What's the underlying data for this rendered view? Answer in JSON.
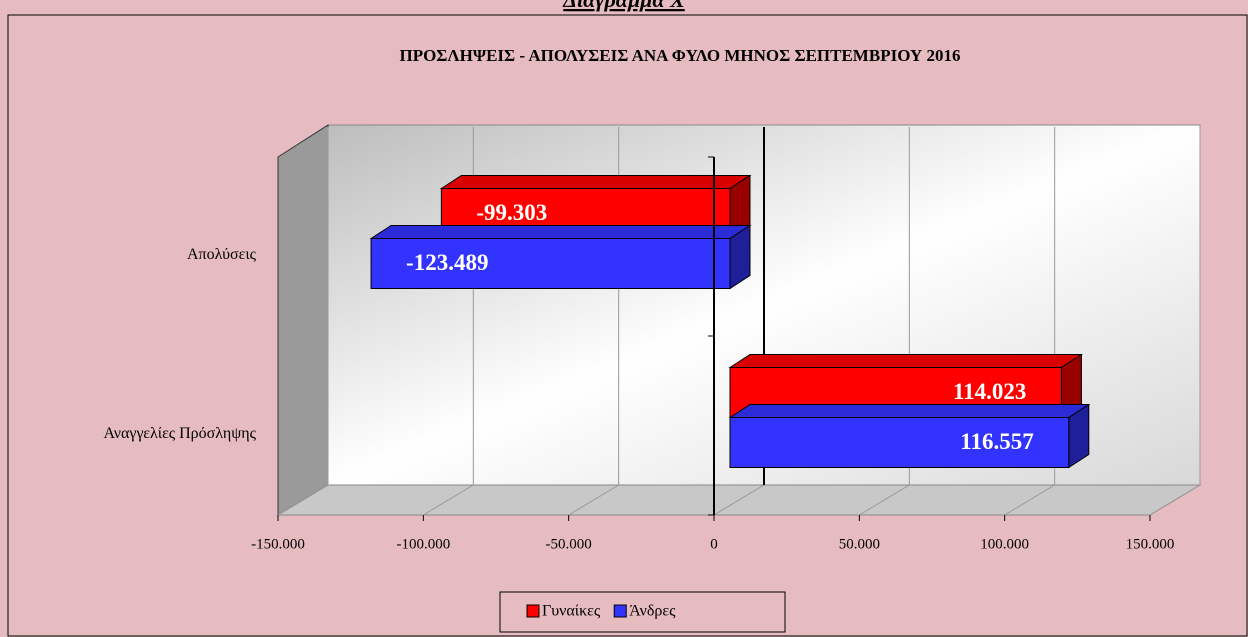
{
  "heading": "Διάγραμμα Χ",
  "chart_data": {
    "type": "bar3d-horizontal",
    "title": "ΠΡΟΣΛΗΨΕΙΣ - ΑΠΟΛΥΣΕΙΣ ΑΝΑ ΦΥΛΟ ΜΗΝΟΣ ΣΕΠΤΕΜΒΡΙΟΥ 2016",
    "categories": [
      "Απολύσεις",
      "Αναγγελίες Πρόσληψης"
    ],
    "series": [
      {
        "name": "Γυναίκες",
        "color": "#ff0000",
        "values": [
          -99303,
          114023
        ],
        "value_labels": [
          "-99.303",
          "114.023"
        ]
      },
      {
        "name": "Άνδρες",
        "color": "#3333ff",
        "values": [
          -123489,
          116557
        ],
        "value_labels": [
          "-123.489",
          "116.557"
        ]
      }
    ],
    "xlim": [
      -150000,
      150000
    ],
    "xticks": [
      {
        "value": -150000,
        "label": "-150.000"
      },
      {
        "value": -100000,
        "label": "-100.000"
      },
      {
        "value": -50000,
        "label": "-50.000"
      },
      0,
      {
        "value": 50000,
        "label": "50.000"
      },
      {
        "value": 100000,
        "label": "100.000"
      },
      {
        "value": 150000,
        "label": "150.000"
      }
    ],
    "grid": true,
    "legend": "bottom"
  }
}
